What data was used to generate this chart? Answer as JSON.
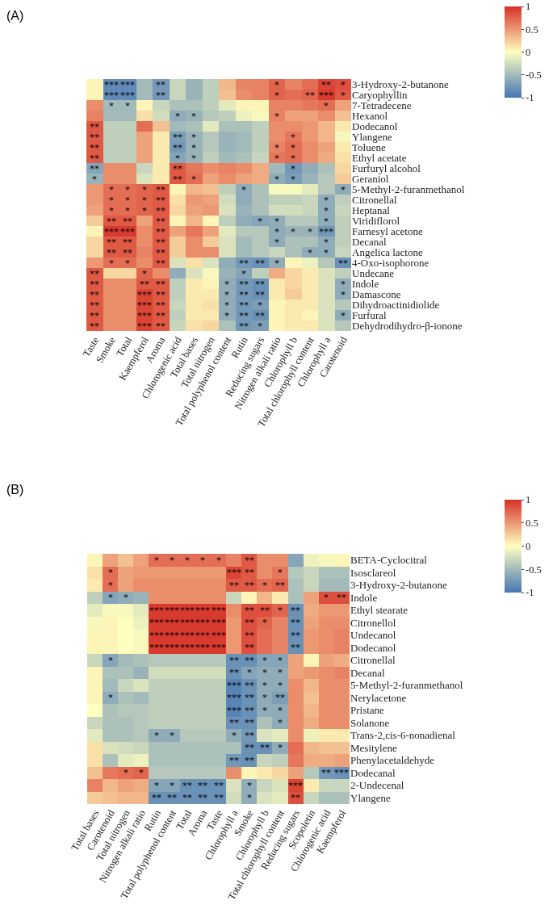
{
  "chart_data": [
    {
      "type": "heatmap",
      "title": "(A)",
      "categories": [
        "Taste",
        "Smoke",
        "Total",
        "Kaempferol",
        "Aroma",
        "Chlorogenic acid",
        "Total bases",
        "Total nitrogen",
        "Total polyphenol content",
        "Rutin",
        "Reducing sugars",
        "Nitrogen alkali ratio",
        "Chlorophyll b",
        "Total chlorophyll content",
        "Chlorophyll a",
        "Carotenoid"
      ],
      "y_categories": [
        "3-Hydroxy-2-butanone",
        "Caryophyllin",
        "7-Tetradecene",
        "Hexanol",
        "Dodecanol",
        "Ylangene",
        "Toluene",
        "Ethyl acetate",
        "Furfuryl alcohol",
        "Geraniol",
        "5-Methyl-2-furanmethanol",
        "Citronellal",
        "Heptanal",
        "Viridiflorol",
        "Farnesyl acetone",
        "Decanal",
        "Angelica lactone",
        "4-Oxo-isophorone",
        "Undecane",
        "Indole",
        "Damascone",
        "Dihydroactinidiolide",
        "Furfural",
        "Dehydrodihydro-β-ionone"
      ],
      "cells": [
        [
          0.05,
          -0.85,
          -0.85,
          -0.5,
          -0.75,
          -0.3,
          -0.55,
          -0.35,
          0.35,
          0.6,
          0.6,
          0.75,
          0.6,
          0.7,
          0.9,
          0.85
        ],
        [
          0.05,
          -0.85,
          -0.85,
          -0.5,
          -0.75,
          -0.3,
          -0.55,
          -0.35,
          0.3,
          0.55,
          0.6,
          0.75,
          0.7,
          0.75,
          0.95,
          0.8
        ],
        [
          0.55,
          -0.5,
          -0.5,
          0.05,
          -0.3,
          -0.45,
          -0.45,
          -0.35,
          -0.15,
          0.05,
          0.05,
          0.6,
          0.6,
          0.65,
          0.7,
          0.45
        ],
        [
          0.6,
          -0.5,
          -0.5,
          0.15,
          -0.25,
          -0.6,
          -0.55,
          -0.4,
          -0.35,
          -0.1,
          -0.05,
          0.6,
          0.45,
          0.45,
          0.55,
          0.3
        ],
        [
          0.8,
          -0.35,
          -0.35,
          0.7,
          0.3,
          -0.5,
          -0.45,
          -0.15,
          -0.45,
          -0.45,
          -0.35,
          0.55,
          0.55,
          0.5,
          0.35,
          0.1
        ],
        [
          0.8,
          -0.35,
          -0.35,
          0.45,
          0.1,
          -0.7,
          -0.55,
          -0.4,
          -0.55,
          -0.5,
          -0.35,
          0.55,
          0.65,
          0.5,
          0.35,
          -0.05
        ],
        [
          0.8,
          -0.35,
          -0.35,
          0.45,
          0.1,
          -0.75,
          -0.55,
          -0.4,
          -0.55,
          -0.5,
          -0.35,
          0.6,
          0.7,
          0.55,
          0.45,
          0.1
        ],
        [
          0.8,
          -0.35,
          -0.35,
          0.45,
          0.1,
          -0.65,
          -0.55,
          -0.35,
          -0.5,
          -0.45,
          -0.3,
          0.65,
          0.7,
          0.55,
          0.4,
          0.15
        ],
        [
          -0.65,
          0.55,
          0.55,
          -0.3,
          0.1,
          0.8,
          0.65,
          0.55,
          0.6,
          0.55,
          0.4,
          -0.5,
          -0.75,
          -0.6,
          -0.45,
          0.2
        ],
        [
          -0.55,
          0.55,
          0.55,
          -0.2,
          0.1,
          0.8,
          0.7,
          0.45,
          0.55,
          0.45,
          0.4,
          -0.6,
          -0.7,
          -0.55,
          -0.4,
          0.25
        ],
        [
          0.5,
          0.7,
          0.7,
          0.75,
          0.8,
          0.05,
          0.35,
          0.3,
          -0.35,
          -0.6,
          -0.45,
          -0.05,
          -0.05,
          -0.15,
          -0.4,
          -0.6
        ],
        [
          0.5,
          0.7,
          0.7,
          0.75,
          0.8,
          0.15,
          0.5,
          0.45,
          -0.25,
          -0.6,
          -0.45,
          -0.35,
          -0.35,
          -0.3,
          -0.6,
          -0.35
        ],
        [
          0.45,
          0.7,
          0.7,
          0.75,
          0.8,
          0.2,
          0.45,
          0.5,
          -0.2,
          -0.55,
          -0.45,
          -0.25,
          -0.25,
          -0.3,
          -0.6,
          -0.3
        ],
        [
          0.25,
          0.8,
          0.8,
          0.45,
          0.8,
          0.05,
          0.35,
          0.05,
          -0.35,
          -0.6,
          -0.65,
          -0.6,
          -0.4,
          -0.4,
          -0.6,
          -0.35
        ],
        [
          0.05,
          0.95,
          0.95,
          0.55,
          0.8,
          0.45,
          0.65,
          0.45,
          -0.15,
          -0.4,
          -0.4,
          -0.6,
          -0.55,
          -0.55,
          -0.75,
          -0.35
        ],
        [
          0.2,
          0.8,
          0.8,
          0.55,
          0.8,
          0.25,
          0.55,
          0.25,
          -0.2,
          -0.5,
          -0.4,
          -0.6,
          -0.45,
          -0.45,
          -0.6,
          -0.35
        ],
        [
          0.2,
          0.8,
          0.8,
          0.6,
          0.8,
          0.25,
          0.55,
          0.55,
          -0.2,
          -0.5,
          -0.4,
          -0.3,
          -0.45,
          -0.6,
          -0.6,
          -0.3
        ],
        [
          0.5,
          0.7,
          0.7,
          0.55,
          0.8,
          -0.2,
          0.15,
          -0.2,
          -0.6,
          -0.75,
          -0.8,
          -0.6,
          0.05,
          -0.1,
          -0.4,
          -0.8
        ],
        [
          0.8,
          0.2,
          0.2,
          0.75,
          0.55,
          -0.6,
          -0.2,
          -0.05,
          -0.55,
          -0.65,
          -0.35,
          0.4,
          0.2,
          0.1,
          -0.2,
          -0.35
        ],
        [
          0.8,
          0.55,
          0.55,
          0.8,
          0.8,
          -0.35,
          0.1,
          0.05,
          -0.6,
          -0.75,
          -0.8,
          0.1,
          0.2,
          0.1,
          -0.2,
          -0.6
        ],
        [
          0.8,
          0.55,
          0.55,
          0.9,
          0.8,
          -0.35,
          0.1,
          0.1,
          -0.6,
          -0.75,
          -0.8,
          0.1,
          0.25,
          0.1,
          -0.2,
          -0.6
        ],
        [
          0.8,
          0.55,
          0.55,
          0.9,
          0.8,
          -0.3,
          0.1,
          0.15,
          -0.6,
          -0.75,
          -0.7,
          0.05,
          0.1,
          0.1,
          -0.2,
          -0.4
        ],
        [
          0.8,
          0.55,
          0.55,
          0.9,
          0.8,
          -0.35,
          0.1,
          0.1,
          -0.6,
          -0.75,
          -0.8,
          0.05,
          0.1,
          0.05,
          -0.2,
          -0.6
        ],
        [
          0.8,
          0.55,
          0.55,
          0.9,
          0.8,
          -0.3,
          0.15,
          0.2,
          -0.45,
          -0.75,
          -0.7,
          0.05,
          0.1,
          0.1,
          -0.2,
          -0.4
        ]
      ],
      "cell_labels": [
        [
          null,
          "***",
          "***",
          null,
          "**",
          null,
          null,
          null,
          null,
          null,
          null,
          "*",
          null,
          null,
          "**",
          "*"
        ],
        [
          null,
          "***",
          "***",
          null,
          "**",
          null,
          null,
          null,
          null,
          null,
          null,
          "*",
          null,
          "**",
          "***",
          "*"
        ],
        [
          null,
          "*",
          "*",
          null,
          null,
          null,
          null,
          null,
          null,
          null,
          null,
          null,
          null,
          null,
          "*",
          null
        ],
        [
          null,
          null,
          null,
          null,
          null,
          "*",
          "*",
          null,
          null,
          null,
          null,
          "*",
          null,
          null,
          null,
          null
        ],
        [
          "**",
          null,
          null,
          null,
          null,
          null,
          null,
          null,
          null,
          null,
          null,
          null,
          null,
          null,
          null,
          null
        ],
        [
          "**",
          null,
          null,
          null,
          null,
          "**",
          "*",
          null,
          null,
          null,
          null,
          null,
          "*",
          null,
          null,
          null
        ],
        [
          "**",
          null,
          null,
          null,
          null,
          "**",
          "*",
          null,
          null,
          null,
          null,
          "*",
          "*",
          null,
          null,
          null
        ],
        [
          "**",
          null,
          null,
          null,
          null,
          "*",
          "*",
          null,
          null,
          null,
          null,
          "*",
          "*",
          null,
          null,
          null
        ],
        [
          "**",
          null,
          null,
          null,
          null,
          "**",
          null,
          null,
          null,
          null,
          null,
          null,
          "*",
          null,
          null,
          null
        ],
        [
          "*",
          null,
          null,
          null,
          null,
          "**",
          "*",
          null,
          null,
          null,
          null,
          "*",
          "*",
          null,
          null,
          null
        ],
        [
          null,
          "*",
          "*",
          "*",
          "**",
          null,
          null,
          null,
          null,
          "*",
          null,
          null,
          null,
          null,
          null,
          "*"
        ],
        [
          null,
          "*",
          "*",
          "*",
          "**",
          null,
          null,
          null,
          null,
          null,
          null,
          null,
          null,
          null,
          "*",
          null
        ],
        [
          null,
          "*",
          "*",
          "*",
          "**",
          null,
          null,
          null,
          null,
          null,
          null,
          null,
          null,
          null,
          "*",
          null
        ],
        [
          null,
          "**",
          "**",
          null,
          "**",
          null,
          null,
          null,
          null,
          null,
          "*",
          "*",
          null,
          null,
          "*",
          null
        ],
        [
          null,
          "***",
          "***",
          null,
          "**",
          null,
          null,
          null,
          null,
          null,
          null,
          "*",
          "*",
          "*",
          "***",
          null
        ],
        [
          null,
          "**",
          "**",
          null,
          "**",
          null,
          null,
          null,
          null,
          null,
          null,
          "*",
          null,
          null,
          "*",
          null
        ],
        [
          null,
          "**",
          "**",
          null,
          "**",
          null,
          null,
          null,
          null,
          null,
          null,
          null,
          null,
          "*",
          "*",
          null
        ],
        [
          null,
          "*",
          "*",
          null,
          "**",
          null,
          null,
          null,
          null,
          "**",
          "**",
          "*",
          null,
          null,
          null,
          "**"
        ],
        [
          "**",
          null,
          null,
          "*",
          null,
          null,
          null,
          null,
          null,
          "*",
          null,
          null,
          null,
          null,
          null,
          null
        ],
        [
          "**",
          null,
          null,
          "**",
          "**",
          null,
          null,
          null,
          "*",
          "**",
          "**",
          null,
          null,
          null,
          null,
          "*"
        ],
        [
          "**",
          null,
          null,
          "***",
          "**",
          null,
          null,
          null,
          "*",
          "**",
          "**",
          null,
          null,
          null,
          null,
          "*"
        ],
        [
          "**",
          null,
          null,
          "***",
          "**",
          null,
          null,
          null,
          "*",
          "**",
          "*",
          null,
          null,
          null,
          null,
          null
        ],
        [
          "**",
          null,
          null,
          "***",
          "**",
          null,
          null,
          null,
          "*",
          "**",
          "**",
          null,
          null,
          null,
          null,
          "*"
        ],
        [
          "**",
          null,
          null,
          "***",
          "**",
          null,
          null,
          null,
          null,
          "**",
          "*",
          null,
          null,
          null,
          null,
          null
        ]
      ],
      "clim": [
        -1,
        1
      ],
      "cticks": [
        -1,
        -0.5,
        0,
        0.5,
        1
      ]
    },
    {
      "type": "heatmap",
      "title": "(B)",
      "categories": [
        "Total bases",
        "Carotenoid",
        "Total nitrogen",
        "Nitrogen alkali ratio",
        "Rutin",
        "Total polyphenol content",
        "Total",
        "Aroma",
        "Taste",
        "Chlorophyll a",
        "Smoke",
        "Chlorophyll b",
        "Total chlorophyll content",
        "Reducing sugars",
        "Scopoletin",
        "Chlorogenic acid",
        "Kaempferol"
      ],
      "y_categories": [
        "BETA-Cyclocitral",
        "Isosclareol",
        "3-Hydroxy-2-butanone",
        "Indole",
        "Ethyl stearate",
        "Citronellol",
        "Undecanol",
        "Dodecanol",
        "Citronellal",
        "Decanal",
        "5-Methyl-2-furanmethanol",
        "Nerylacetone",
        "Pristane",
        "Solanone",
        "Trans-2,cis-6-nonadienal",
        "Mesitylene",
        "Phenylacetaldehyde",
        "Dodecanal",
        "2-Undecenal",
        "Ylangene"
      ],
      "cells": [
        [
          0.05,
          0.45,
          0.3,
          0.45,
          0.7,
          0.7,
          0.7,
          0.7,
          0.7,
          0.6,
          0.8,
          0.55,
          0.55,
          -0.65,
          -0.1,
          -0.05,
          0.05
        ],
        [
          0.15,
          0.7,
          0.45,
          0.5,
          0.5,
          0.5,
          0.5,
          0.5,
          0.5,
          0.9,
          0.8,
          0.55,
          0.65,
          -0.4,
          -0.3,
          -0.45,
          -0.45
        ],
        [
          0.1,
          0.7,
          0.45,
          0.55,
          0.55,
          0.55,
          0.55,
          0.55,
          0.55,
          0.8,
          0.8,
          0.7,
          0.75,
          -0.45,
          -0.3,
          -0.5,
          -0.5
        ],
        [
          -0.35,
          -0.65,
          -0.6,
          -0.55,
          0.55,
          0.55,
          0.55,
          0.55,
          0.55,
          -0.3,
          0.05,
          0.35,
          0.1,
          -0.45,
          0.45,
          0.85,
          0.85
        ],
        [
          -0.15,
          -0.05,
          -0.05,
          -0.15,
          0.95,
          0.95,
          0.95,
          0.95,
          0.95,
          0.55,
          0.85,
          0.85,
          0.75,
          -0.8,
          0.4,
          0.5,
          0.5
        ],
        [
          -0.05,
          0.05,
          0,
          -0.1,
          0.95,
          0.95,
          0.95,
          0.95,
          0.95,
          0.5,
          0.85,
          0.75,
          0.6,
          -0.8,
          0.45,
          0.55,
          0.55
        ],
        [
          0.05,
          0.05,
          0,
          -0.05,
          0.95,
          0.95,
          0.95,
          0.95,
          0.95,
          0.5,
          0.85,
          0.7,
          0.6,
          -0.8,
          0.5,
          0.55,
          0.6
        ],
        [
          0.05,
          0.05,
          0,
          -0.05,
          0.95,
          0.95,
          0.95,
          0.95,
          0.95,
          0.5,
          0.85,
          0.7,
          0.6,
          -0.8,
          0.5,
          0.55,
          0.6
        ],
        [
          -0.3,
          -0.65,
          -0.5,
          -0.45,
          -0.4,
          -0.4,
          -0.4,
          -0.4,
          -0.4,
          -0.8,
          -0.8,
          -0.65,
          -0.65,
          0.45,
          0.05,
          0.45,
          0.4
        ],
        [
          0.05,
          -0.45,
          -0.45,
          -0.55,
          -0.25,
          -0.25,
          -0.25,
          -0.25,
          -0.25,
          -0.8,
          -0.65,
          -0.6,
          -0.6,
          0.45,
          0.5,
          0.55,
          0.6
        ],
        [
          0.05,
          -0.5,
          -0.3,
          -0.2,
          -0.35,
          -0.35,
          -0.35,
          -0.35,
          -0.35,
          -0.9,
          -0.8,
          -0.6,
          -0.6,
          0.55,
          0.35,
          0.55,
          0.55
        ],
        [
          0.05,
          -0.6,
          -0.45,
          -0.5,
          -0.35,
          -0.35,
          -0.35,
          -0.35,
          -0.35,
          -0.9,
          -0.8,
          -0.6,
          -0.7,
          0.55,
          0.3,
          0.55,
          0.55
        ],
        [
          0,
          -0.45,
          -0.4,
          -0.4,
          -0.35,
          -0.35,
          -0.35,
          -0.35,
          -0.35,
          -0.9,
          -0.8,
          -0.6,
          -0.6,
          0.55,
          0.35,
          0.55,
          0.55
        ],
        [
          -0.3,
          -0.45,
          -0.45,
          -0.4,
          -0.35,
          -0.35,
          -0.35,
          -0.35,
          -0.35,
          -0.8,
          -0.8,
          -0.45,
          -0.6,
          0.55,
          0.4,
          0.55,
          0.55
        ],
        [
          -0.15,
          -0.45,
          -0.45,
          -0.4,
          -0.6,
          -0.6,
          -0.4,
          -0.4,
          -0.4,
          -0.6,
          -0.75,
          -0.2,
          -0.15,
          0.55,
          -0.1,
          0.1,
          0.1
        ],
        [
          0.15,
          -0.2,
          -0.25,
          -0.3,
          -0.45,
          -0.45,
          -0.45,
          -0.45,
          -0.45,
          -0.45,
          -0.8,
          -0.8,
          -0.6,
          0.7,
          0.35,
          0.3,
          0.3
        ],
        [
          0.15,
          -0.45,
          -0.15,
          -0.1,
          -0.45,
          -0.45,
          -0.45,
          -0.45,
          -0.45,
          -0.75,
          -0.8,
          -0.3,
          -0.35,
          0.65,
          0.4,
          0.4,
          0.45
        ],
        [
          0.3,
          0.65,
          0.7,
          0.75,
          -0.4,
          -0.4,
          -0.4,
          -0.4,
          -0.4,
          0.55,
          0.05,
          0.1,
          0.2,
          0.45,
          -0.4,
          -0.75,
          -0.8
        ],
        [
          0.6,
          0.35,
          0.45,
          0.4,
          -0.65,
          -0.65,
          -0.8,
          -0.8,
          -0.8,
          -0.2,
          -0.6,
          -0.3,
          -0.2,
          0.9,
          0.1,
          -0.3,
          -0.3
        ],
        [
          0.25,
          0.3,
          0.35,
          0.35,
          -0.8,
          -0.8,
          -0.8,
          -0.8,
          -0.8,
          -0.25,
          -0.6,
          -0.2,
          -0.15,
          0.85,
          -0.3,
          -0.45,
          -0.45
        ]
      ],
      "cell_labels": [
        [
          null,
          null,
          null,
          null,
          "*",
          "*",
          "*",
          "*",
          "*",
          null,
          "**",
          null,
          null,
          null,
          null,
          null,
          null
        ],
        [
          null,
          "*",
          null,
          null,
          null,
          null,
          null,
          null,
          null,
          "***",
          "**",
          null,
          "*",
          null,
          null,
          null,
          null
        ],
        [
          null,
          "*",
          null,
          null,
          null,
          null,
          null,
          null,
          null,
          "**",
          "**",
          "*",
          "**",
          null,
          null,
          null,
          null
        ],
        [
          null,
          "*",
          "*",
          null,
          null,
          null,
          null,
          null,
          null,
          null,
          null,
          null,
          null,
          null,
          null,
          "*",
          "**"
        ],
        [
          null,
          null,
          null,
          null,
          "***",
          "***",
          "***",
          "***",
          "***",
          null,
          "**",
          "**",
          "*",
          "**",
          null,
          null,
          null
        ],
        [
          null,
          null,
          null,
          null,
          "***",
          "***",
          "***",
          "***",
          "***",
          null,
          "**",
          "*",
          null,
          "**",
          null,
          null,
          null
        ],
        [
          null,
          null,
          null,
          null,
          "***",
          "***",
          "***",
          "***",
          "***",
          null,
          "**",
          null,
          null,
          "**",
          null,
          null,
          null
        ],
        [
          null,
          null,
          null,
          null,
          "***",
          "***",
          "***",
          "***",
          "***",
          null,
          "**",
          null,
          null,
          "**",
          null,
          null,
          null
        ],
        [
          null,
          "*",
          null,
          null,
          null,
          null,
          null,
          null,
          null,
          "**",
          "**",
          "*",
          "*",
          null,
          null,
          null,
          null
        ],
        [
          null,
          null,
          null,
          null,
          null,
          null,
          null,
          null,
          null,
          "**",
          "*",
          "*",
          "*",
          null,
          null,
          null,
          null
        ],
        [
          null,
          null,
          null,
          null,
          null,
          null,
          null,
          null,
          null,
          "***",
          "**",
          "*",
          "*",
          null,
          null,
          null,
          null
        ],
        [
          null,
          "*",
          null,
          null,
          null,
          null,
          null,
          null,
          null,
          "***",
          "**",
          "*",
          "**",
          null,
          null,
          null,
          null
        ],
        [
          null,
          null,
          null,
          null,
          null,
          null,
          null,
          null,
          null,
          "***",
          "**",
          "*",
          "*",
          null,
          null,
          null,
          null
        ],
        [
          null,
          null,
          null,
          null,
          null,
          null,
          null,
          null,
          null,
          "**",
          "**",
          null,
          "*",
          null,
          null,
          null,
          null
        ],
        [
          null,
          null,
          null,
          null,
          "*",
          "*",
          null,
          null,
          null,
          "*",
          "**",
          null,
          null,
          null,
          null,
          null,
          null
        ],
        [
          null,
          null,
          null,
          null,
          null,
          null,
          null,
          null,
          null,
          null,
          "**",
          "**",
          "*",
          null,
          null,
          null,
          null
        ],
        [
          null,
          null,
          null,
          null,
          null,
          null,
          null,
          null,
          null,
          "**",
          "**",
          null,
          null,
          null,
          null,
          null,
          null
        ],
        [
          null,
          null,
          "*",
          "*",
          null,
          null,
          null,
          null,
          null,
          null,
          null,
          null,
          null,
          null,
          null,
          "**",
          "***"
        ],
        [
          null,
          null,
          null,
          null,
          "*",
          "*",
          "**",
          "**",
          "**",
          null,
          "*",
          null,
          null,
          "***",
          null,
          null,
          null
        ],
        [
          null,
          null,
          null,
          null,
          "**",
          "**",
          "**",
          "**",
          "**",
          null,
          "*",
          null,
          null,
          "**",
          null,
          null,
          null
        ]
      ],
      "clim": [
        -1,
        1
      ],
      "cticks": [
        -1,
        -0.5,
        0,
        0.5,
        1
      ]
    }
  ]
}
